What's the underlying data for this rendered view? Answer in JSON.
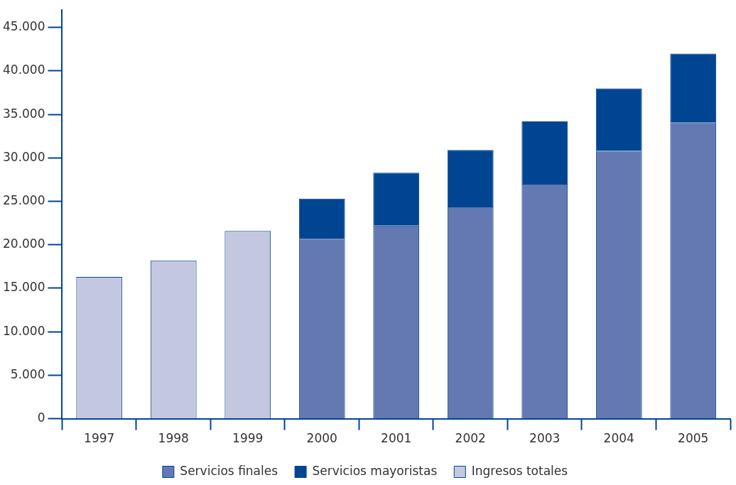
{
  "chart_data": {
    "type": "bar",
    "stacked": true,
    "categories": [
      "1997",
      "1998",
      "1999",
      "2000",
      "2001",
      "2002",
      "2003",
      "2004",
      "2005"
    ],
    "series": [
      {
        "name": "Servicios finales",
        "color": "#6478b2",
        "values": [
          null,
          null,
          null,
          20700,
          22200,
          24400,
          27000,
          30800,
          34100
        ]
      },
      {
        "name": "Servicios mayoristas",
        "color": "#004592",
        "values": [
          null,
          null,
          null,
          4600,
          6100,
          6500,
          7200,
          7200,
          7900
        ]
      },
      {
        "name": "Ingresos totales",
        "color": "#c3c8e0",
        "values": [
          16300,
          18200,
          21600,
          null,
          null,
          null,
          null,
          null,
          null
        ]
      }
    ],
    "ylim": [
      0,
      47000
    ],
    "yticks": [
      {
        "value": 0,
        "label": "0"
      },
      {
        "value": 5000,
        "label": "5.000"
      },
      {
        "value": 10000,
        "label": "10.000"
      },
      {
        "value": 15000,
        "label": "15.000"
      },
      {
        "value": 20000,
        "label": "20.000"
      },
      {
        "value": 25000,
        "label": "25.000"
      },
      {
        "value": 30000,
        "label": "30.000"
      },
      {
        "value": 35000,
        "label": "35.000"
      },
      {
        "value": 40000,
        "label": "40.000"
      },
      {
        "value": 45000,
        "label": "45.000"
      }
    ],
    "legend": "bottom"
  }
}
